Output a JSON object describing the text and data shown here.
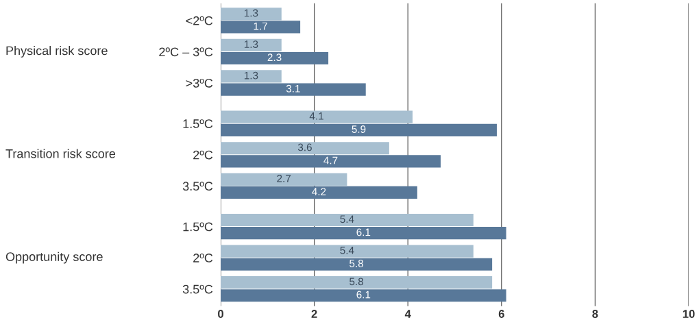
{
  "chart_data": {
    "type": "bar",
    "orientation": "horizontal",
    "categories": [
      "<2ºC",
      "2ºC – 3ºC",
      ">3ºC",
      "1.5ºC",
      "2ºC",
      "3.5ºC",
      "1.5ºC",
      "2ºC",
      "3.5ºC"
    ],
    "series": [
      {
        "color": "#a7bfd0",
        "values": [
          1.3,
          1.3,
          1.3,
          4.1,
          3.6,
          2.7,
          5.4,
          5.4,
          5.8
        ]
      },
      {
        "color": "#587899",
        "values": [
          1.7,
          2.3,
          3.1,
          5.9,
          4.7,
          4.2,
          6.1,
          5.8,
          6.1
        ]
      }
    ],
    "xlim": [
      0,
      10
    ],
    "xticks": [
      0,
      2,
      4,
      6,
      8,
      10
    ],
    "grid": "x",
    "data_labels": true,
    "annotations": [
      "Physical risk score",
      "Transition risk score",
      "Opportunity score"
    ]
  }
}
